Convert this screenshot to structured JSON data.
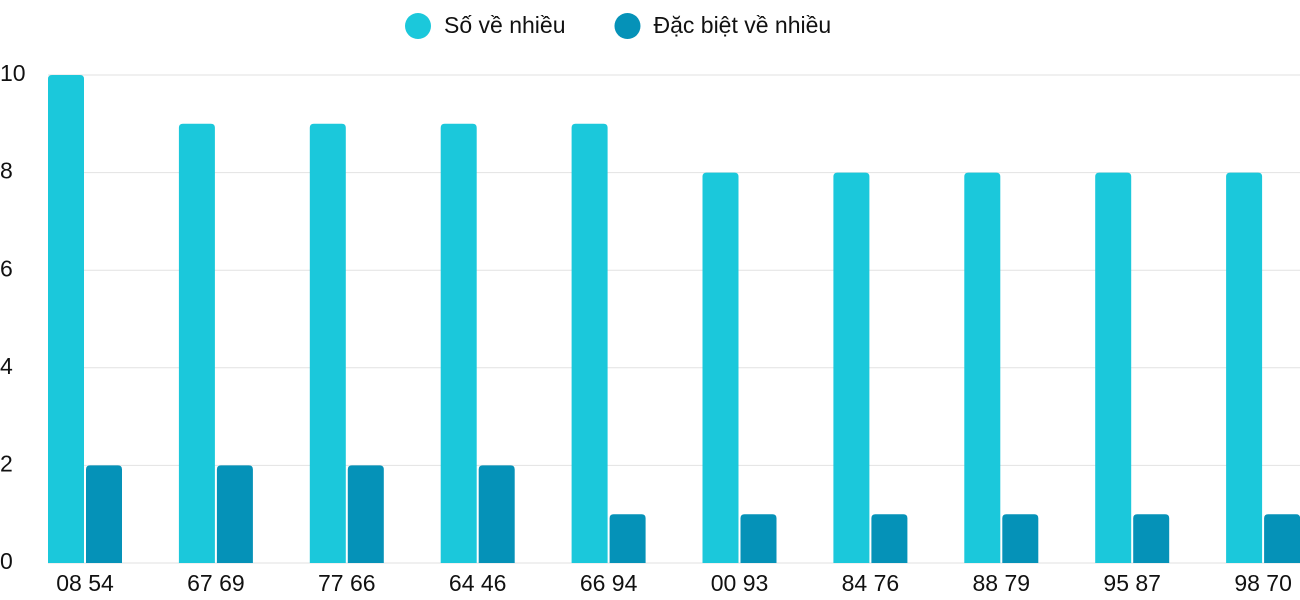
{
  "chart_data": {
    "type": "bar",
    "categories": [
      "08 54",
      "67 69",
      "77 66",
      "64 46",
      "66 94",
      "00 93",
      "84 76",
      "88 79",
      "95 87",
      "98 70"
    ],
    "series": [
      {
        "name": "Số về nhiều",
        "color": "#1bc8db",
        "values": [
          10,
          9,
          9,
          9,
          9,
          8,
          8,
          8,
          8,
          8
        ]
      },
      {
        "name": "Đặc biệt về nhiều",
        "color": "#0592b8",
        "values": [
          2,
          2,
          2,
          2,
          1,
          1,
          1,
          1,
          1,
          1
        ]
      }
    ],
    "ylim": [
      0,
      10
    ],
    "yticks": [
      0,
      2,
      4,
      6,
      8,
      10
    ],
    "grid": true,
    "legend": "top"
  }
}
